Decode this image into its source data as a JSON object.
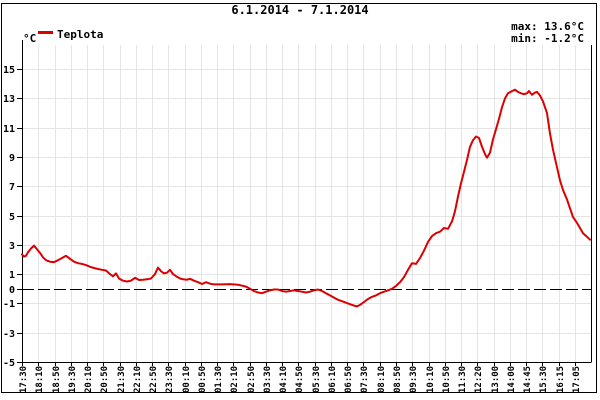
{
  "header": {
    "title": "6.1.2014 - 7.1.2014"
  },
  "legend": {
    "label": "Teplota",
    "swatch_color": "#dd0000"
  },
  "stats": {
    "max_text": "max: 13.6°C",
    "min_text": "min: -1.2°C",
    "max_color": "#dd0000",
    "min_color": "#0000cc"
  },
  "chart_data": {
    "type": "line",
    "title": "6.1.2014 - 7.1.2014",
    "ylabel": "°C",
    "xlabel": "",
    "ylim": [
      -5,
      16.65
    ],
    "grid": true,
    "legend_position": "top-left",
    "zero_line": "black-dashed",
    "max": 13.6,
    "min": -1.2,
    "colors": {
      "series": "#dd0000",
      "grid": "#e4e4e4",
      "axis": "#000000"
    },
    "y_ticks": [
      15,
      13,
      11,
      9,
      7,
      5,
      3,
      1,
      0,
      -1,
      -3,
      -5
    ],
    "x_tick_labels": [
      "17:30",
      "18:10",
      "18:50",
      "19:30",
      "20:10",
      "20:50",
      "21:30",
      "22:10",
      "22:50",
      "23:30",
      "00:10",
      "00:50",
      "01:30",
      "02:10",
      "02:50",
      "03:30",
      "04:10",
      "04:50",
      "05:30",
      "06:10",
      "06:50",
      "07:30",
      "08:10",
      "08:50",
      "09:30",
      "10:10",
      "10:50",
      "11:30",
      "12:20",
      "13:00",
      "14:00",
      "14:45",
      "15:30",
      "16:15",
      "17:05"
    ],
    "series": [
      {
        "name": "Teplota",
        "color": "#dd0000",
        "points": [
          [
            0.0,
            2.35
          ],
          [
            0.0035,
            2.2
          ],
          [
            0.007,
            2.25
          ],
          [
            0.0105,
            2.5
          ],
          [
            0.0158,
            2.75
          ],
          [
            0.0211,
            2.95
          ],
          [
            0.0264,
            2.7
          ],
          [
            0.0316,
            2.45
          ],
          [
            0.0369,
            2.15
          ],
          [
            0.0422,
            1.95
          ],
          [
            0.0492,
            1.85
          ],
          [
            0.0562,
            1.82
          ],
          [
            0.0633,
            1.95
          ],
          [
            0.0703,
            2.1
          ],
          [
            0.0773,
            2.25
          ],
          [
            0.0844,
            2.05
          ],
          [
            0.0914,
            1.85
          ],
          [
            0.0984,
            1.75
          ],
          [
            0.1055,
            1.7
          ],
          [
            0.1125,
            1.62
          ],
          [
            0.1195,
            1.5
          ],
          [
            0.1266,
            1.42
          ],
          [
            0.1336,
            1.35
          ],
          [
            0.1406,
            1.3
          ],
          [
            0.1477,
            1.25
          ],
          [
            0.1547,
            1.0
          ],
          [
            0.1599,
            0.85
          ],
          [
            0.1652,
            1.05
          ],
          [
            0.1705,
            0.7
          ],
          [
            0.1775,
            0.55
          ],
          [
            0.1845,
            0.5
          ],
          [
            0.1916,
            0.55
          ],
          [
            0.1986,
            0.75
          ],
          [
            0.2056,
            0.6
          ],
          [
            0.2127,
            0.62
          ],
          [
            0.2197,
            0.65
          ],
          [
            0.2267,
            0.7
          ],
          [
            0.2338,
            1.0
          ],
          [
            0.239,
            1.45
          ],
          [
            0.2443,
            1.2
          ],
          [
            0.2496,
            1.05
          ],
          [
            0.2548,
            1.1
          ],
          [
            0.2601,
            1.3
          ],
          [
            0.2654,
            1.0
          ],
          [
            0.2724,
            0.82
          ],
          [
            0.2777,
            0.7
          ],
          [
            0.283,
            0.65
          ],
          [
            0.29,
            0.62
          ],
          [
            0.2953,
            0.68
          ],
          [
            0.3023,
            0.55
          ],
          [
            0.3093,
            0.45
          ],
          [
            0.3164,
            0.33
          ],
          [
            0.3234,
            0.45
          ],
          [
            0.3304,
            0.35
          ],
          [
            0.3374,
            0.3
          ],
          [
            0.3515,
            0.3
          ],
          [
            0.3656,
            0.32
          ],
          [
            0.3796,
            0.28
          ],
          [
            0.3937,
            0.15
          ],
          [
            0.4007,
            0.0
          ],
          [
            0.4077,
            -0.15
          ],
          [
            0.4148,
            -0.25
          ],
          [
            0.4218,
            -0.3
          ],
          [
            0.4288,
            -0.2
          ],
          [
            0.4359,
            -0.1
          ],
          [
            0.4429,
            -0.05
          ],
          [
            0.4499,
            -0.05
          ],
          [
            0.4569,
            -0.15
          ],
          [
            0.464,
            -0.2
          ],
          [
            0.471,
            -0.15
          ],
          [
            0.478,
            -0.1
          ],
          [
            0.4851,
            -0.15
          ],
          [
            0.4921,
            -0.2
          ],
          [
            0.4991,
            -0.25
          ],
          [
            0.5062,
            -0.2
          ],
          [
            0.5132,
            -0.1
          ],
          [
            0.5202,
            -0.05
          ],
          [
            0.5272,
            -0.15
          ],
          [
            0.5343,
            -0.3
          ],
          [
            0.5413,
            -0.45
          ],
          [
            0.5483,
            -0.6
          ],
          [
            0.5554,
            -0.75
          ],
          [
            0.5624,
            -0.85
          ],
          [
            0.5694,
            -0.95
          ],
          [
            0.5765,
            -1.05
          ],
          [
            0.5835,
            -1.15
          ],
          [
            0.5888,
            -1.2
          ],
          [
            0.594,
            -1.1
          ],
          [
            0.6011,
            -0.9
          ],
          [
            0.6081,
            -0.7
          ],
          [
            0.6152,
            -0.55
          ],
          [
            0.6222,
            -0.45
          ],
          [
            0.6292,
            -0.3
          ],
          [
            0.6362,
            -0.2
          ],
          [
            0.6433,
            -0.1
          ],
          [
            0.6503,
            0.0
          ],
          [
            0.6573,
            0.2
          ],
          [
            0.6644,
            0.45
          ],
          [
            0.6714,
            0.8
          ],
          [
            0.6784,
            1.3
          ],
          [
            0.6854,
            1.75
          ],
          [
            0.6925,
            1.7
          ],
          [
            0.6995,
            2.1
          ],
          [
            0.7065,
            2.6
          ],
          [
            0.7136,
            3.2
          ],
          [
            0.7206,
            3.6
          ],
          [
            0.7276,
            3.8
          ],
          [
            0.7346,
            3.9
          ],
          [
            0.7417,
            4.15
          ],
          [
            0.7487,
            4.1
          ],
          [
            0.7557,
            4.6
          ],
          [
            0.761,
            5.3
          ],
          [
            0.7663,
            6.3
          ],
          [
            0.7715,
            7.2
          ],
          [
            0.7768,
            8.0
          ],
          [
            0.7821,
            8.8
          ],
          [
            0.7873,
            9.7
          ],
          [
            0.7926,
            10.15
          ],
          [
            0.7979,
            10.4
          ],
          [
            0.8031,
            10.3
          ],
          [
            0.8084,
            9.7
          ],
          [
            0.8137,
            9.2
          ],
          [
            0.8172,
            8.95
          ],
          [
            0.8225,
            9.3
          ],
          [
            0.8277,
            10.2
          ],
          [
            0.833,
            10.9
          ],
          [
            0.8383,
            11.6
          ],
          [
            0.8435,
            12.4
          ],
          [
            0.8488,
            13.0
          ],
          [
            0.8541,
            13.35
          ],
          [
            0.8611,
            13.5
          ],
          [
            0.8664,
            13.6
          ],
          [
            0.8717,
            13.45
          ],
          [
            0.8769,
            13.35
          ],
          [
            0.8822,
            13.3
          ],
          [
            0.8875,
            13.35
          ],
          [
            0.891,
            13.5
          ],
          [
            0.8963,
            13.25
          ],
          [
            0.9016,
            13.4
          ],
          [
            0.9051,
            13.45
          ],
          [
            0.9104,
            13.2
          ],
          [
            0.9156,
            12.8
          ],
          [
            0.9227,
            12.0
          ],
          [
            0.9279,
            10.6
          ],
          [
            0.9332,
            9.5
          ],
          [
            0.9402,
            8.3
          ],
          [
            0.9455,
            7.4
          ],
          [
            0.9508,
            6.75
          ],
          [
            0.9578,
            6.1
          ],
          [
            0.9631,
            5.5
          ],
          [
            0.9684,
            4.9
          ],
          [
            0.9754,
            4.5
          ],
          [
            0.9807,
            4.15
          ],
          [
            0.9859,
            3.8
          ],
          [
            0.993,
            3.55
          ],
          [
            0.9982,
            3.35
          ]
        ]
      }
    ]
  }
}
